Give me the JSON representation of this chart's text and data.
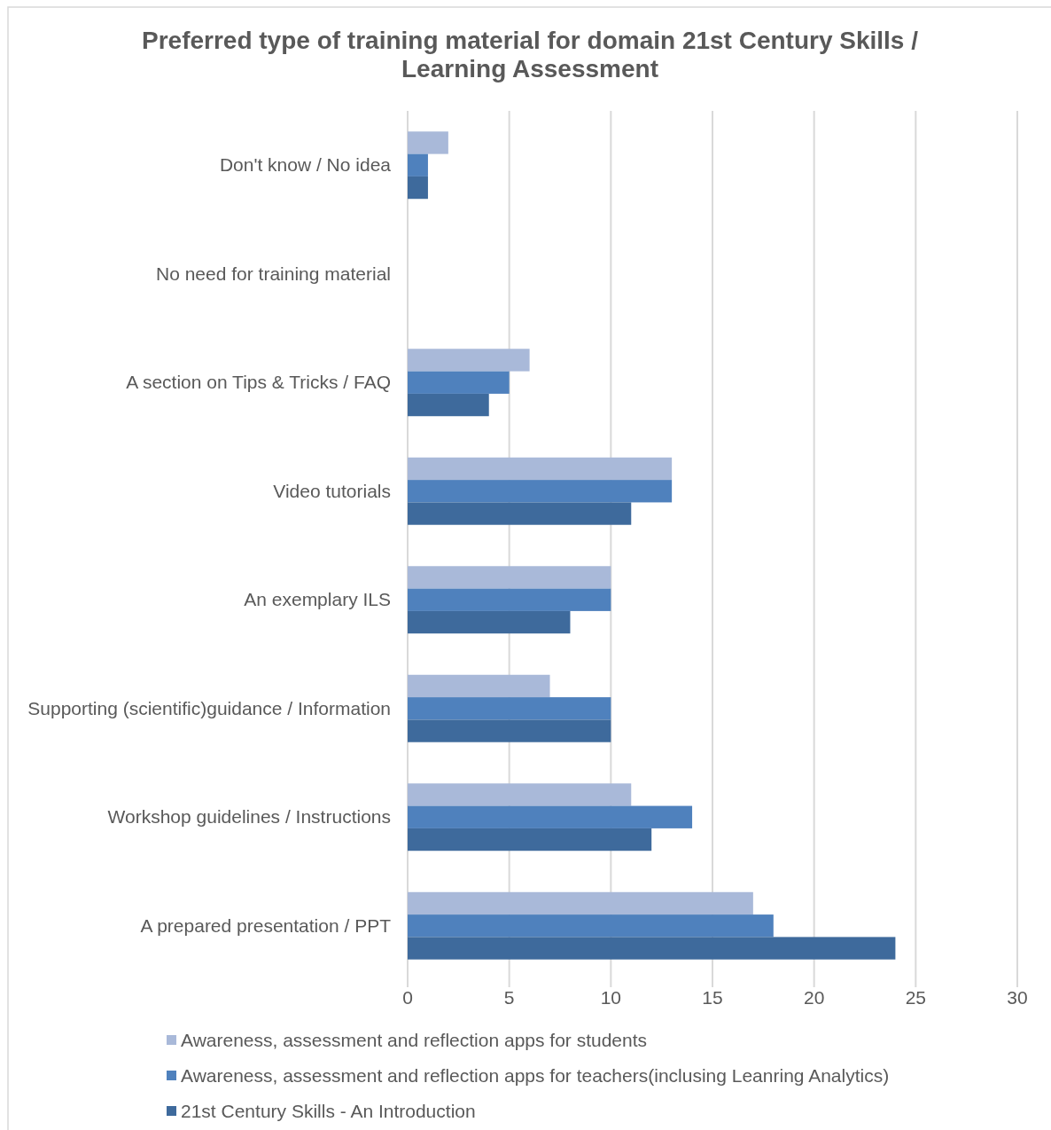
{
  "chart_data": {
    "type": "bar",
    "orientation": "horizontal",
    "title": "Preferred type of training material for domain 21st Century Skills / Learning Assessment",
    "categories": [
      "Don't know / No idea",
      "No need for training material",
      "A section on Tips & Tricks / FAQ",
      "Video tutorials",
      "An exemplary ILS",
      "Supporting (scientific)guidance / Information",
      "Workshop guidelines / Instructions",
      "A prepared presentation / PPT"
    ],
    "series": [
      {
        "name": "Awareness, assessment and reflection apps for students",
        "color": "#a9b9d9",
        "values": [
          2,
          0,
          6,
          13,
          10,
          7,
          11,
          17
        ]
      },
      {
        "name": "Awareness, assessment and reflection apps for teachers(inclusing Leanring Analytics)",
        "color": "#4f81bd",
        "values": [
          1,
          0,
          5,
          13,
          10,
          10,
          14,
          18
        ]
      },
      {
        "name": "21st Century Skills - An Introduction",
        "color": "#3e6a9c",
        "values": [
          1,
          0,
          4,
          11,
          8,
          10,
          12,
          24
        ]
      }
    ],
    "xlim": [
      0,
      30
    ],
    "xticks": [
      0,
      5,
      10,
      15,
      20,
      25,
      30
    ],
    "grid": "x",
    "legend": "bottom"
  }
}
